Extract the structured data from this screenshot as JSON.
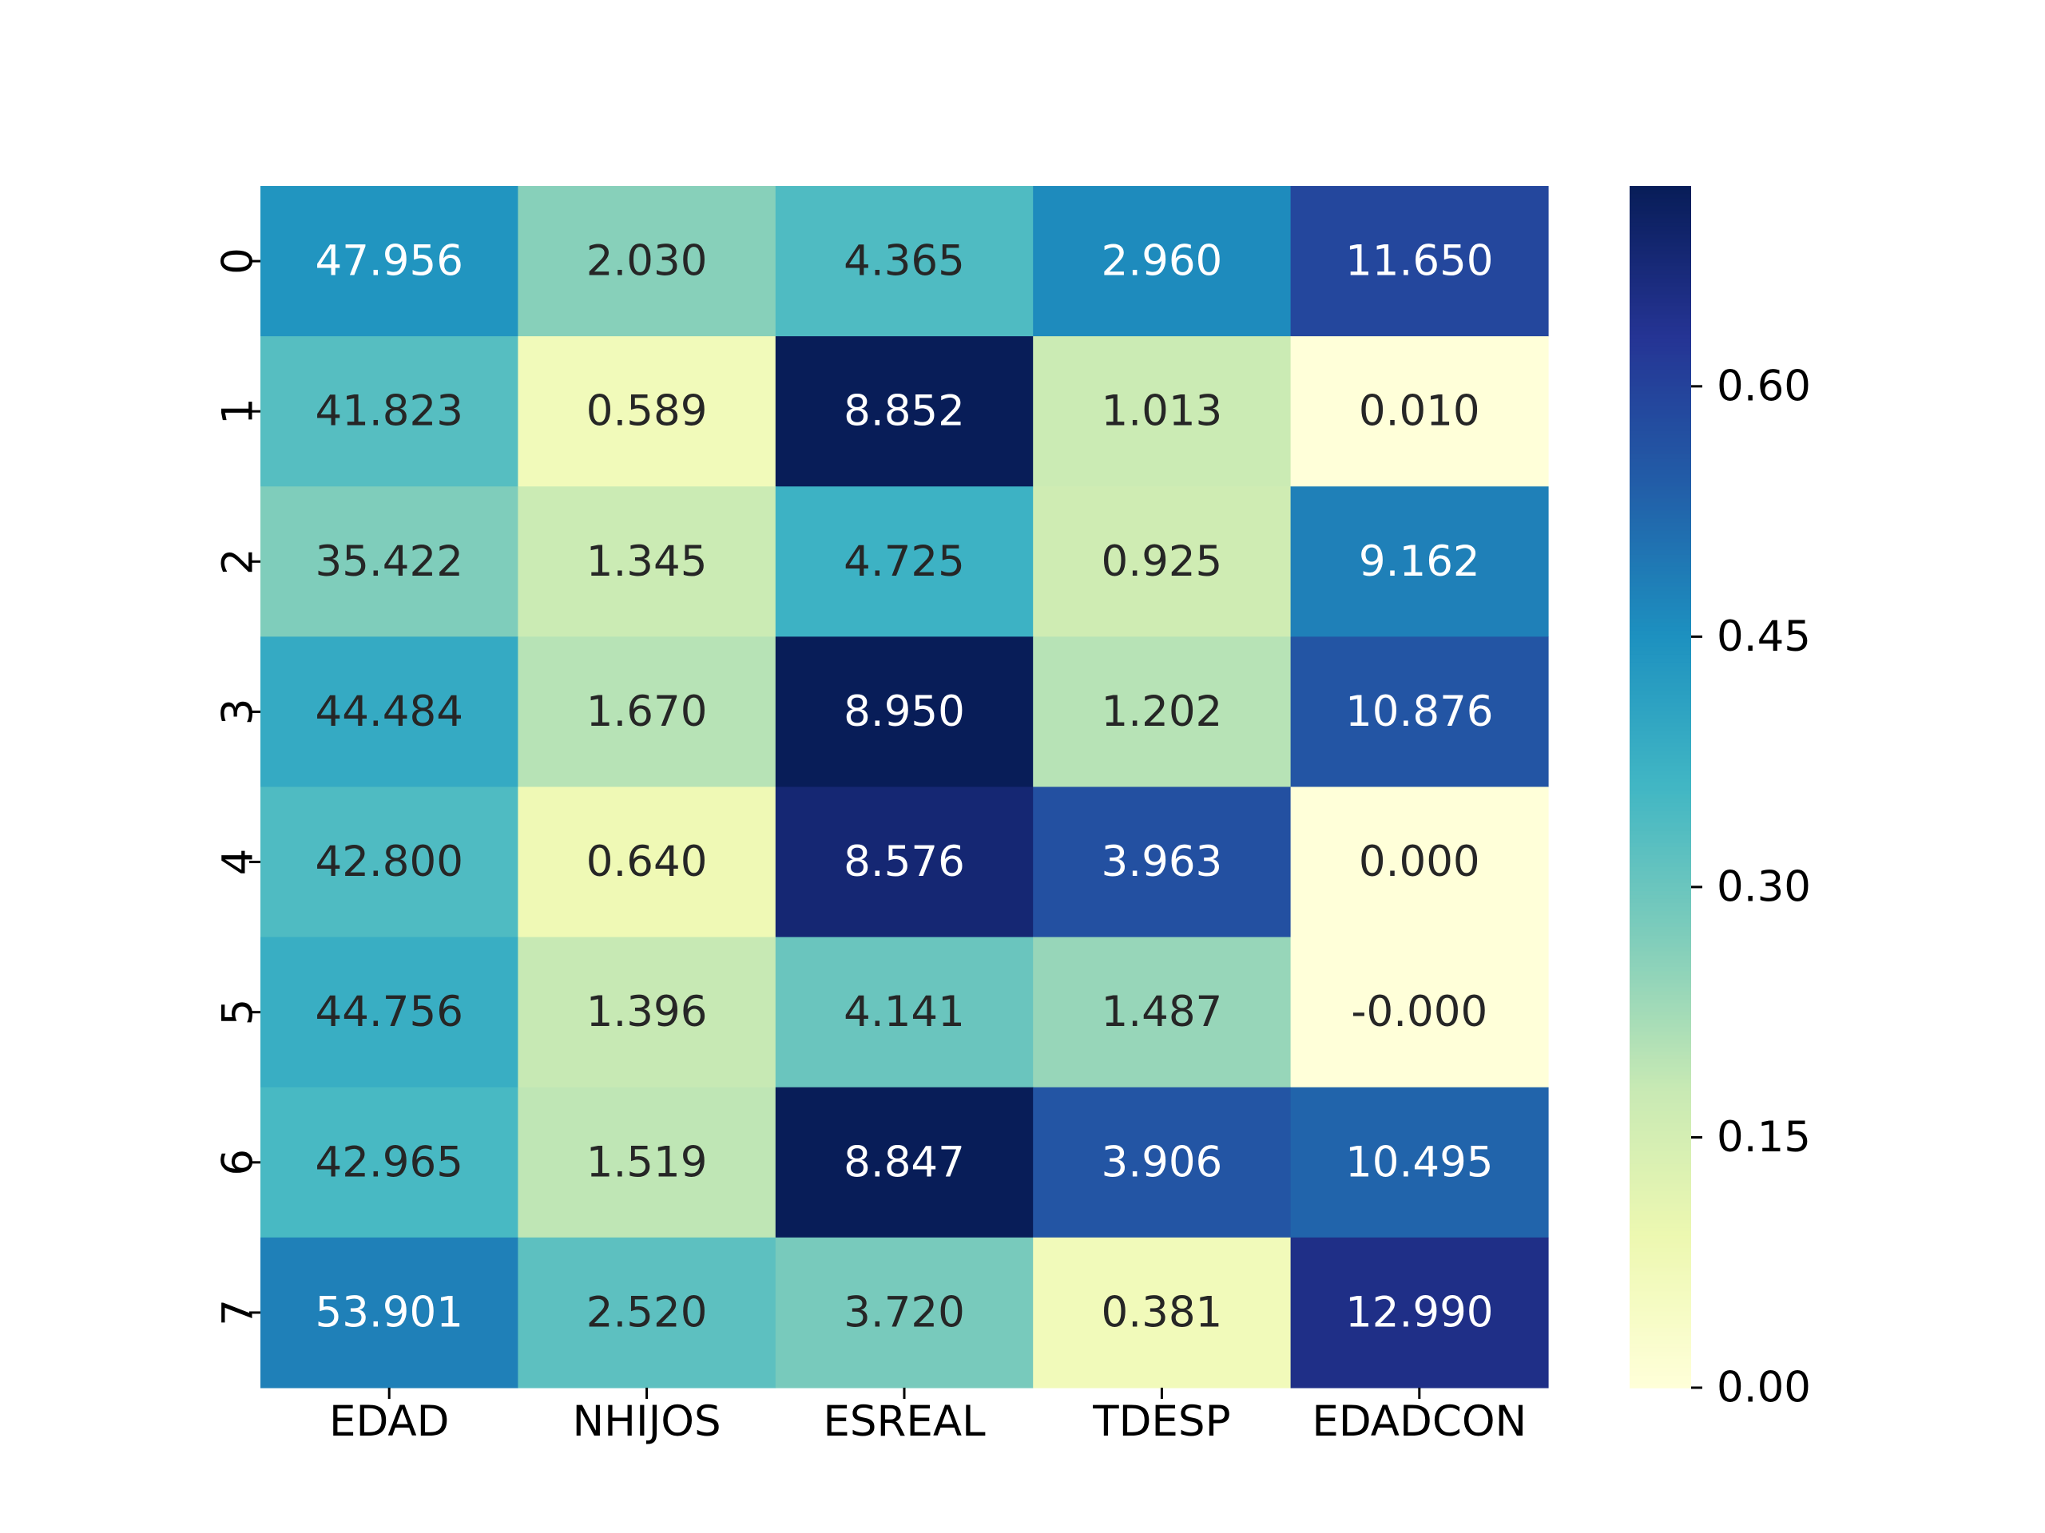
{
  "chart_data": {
    "type": "heatmap",
    "columns": [
      "EDAD",
      "NHIJOS",
      "ESREAL",
      "TDESP",
      "EDADCON"
    ],
    "rows": [
      "0",
      "1",
      "2",
      "3",
      "4",
      "5",
      "6",
      "7"
    ],
    "annotations": [
      [
        "47.956",
        "2.030",
        "4.365",
        "2.960",
        "11.650"
      ],
      [
        "41.823",
        "0.589",
        "8.852",
        "1.013",
        "0.010"
      ],
      [
        "35.422",
        "1.345",
        "4.725",
        "0.925",
        "9.162"
      ],
      [
        "44.484",
        "1.670",
        "8.950",
        "1.202",
        "10.876"
      ],
      [
        "42.800",
        "0.640",
        "8.576",
        "3.963",
        "0.000"
      ],
      [
        "44.756",
        "1.396",
        "4.141",
        "1.487",
        "-0.000"
      ],
      [
        "42.965",
        "1.519",
        "8.847",
        "3.906",
        "10.495"
      ],
      [
        "53.901",
        "2.520",
        "3.720",
        "0.381",
        "12.990"
      ]
    ],
    "color_values": [
      [
        0.44,
        0.26,
        0.34,
        0.46,
        0.59
      ],
      [
        0.33,
        0.07,
        0.72,
        0.17,
        0.0
      ],
      [
        0.27,
        0.17,
        0.37,
        0.16,
        0.48
      ],
      [
        0.39,
        0.2,
        0.72,
        0.2,
        0.56
      ],
      [
        0.34,
        0.08,
        0.68,
        0.57,
        0.0
      ],
      [
        0.38,
        0.18,
        0.3,
        0.24,
        0.0
      ],
      [
        0.35,
        0.19,
        0.72,
        0.56,
        0.53
      ],
      [
        0.48,
        0.32,
        0.28,
        0.07,
        0.65
      ]
    ],
    "colorbar": {
      "vmin": 0.0,
      "vmax": 0.72,
      "ticks": [
        0.0,
        0.15,
        0.3,
        0.45,
        0.6
      ],
      "tick_labels": [
        "0.00",
        "0.15",
        "0.30",
        "0.45",
        "0.60"
      ],
      "colormap": "YlGnBu"
    },
    "title": "",
    "xlabel": "",
    "ylabel": ""
  }
}
